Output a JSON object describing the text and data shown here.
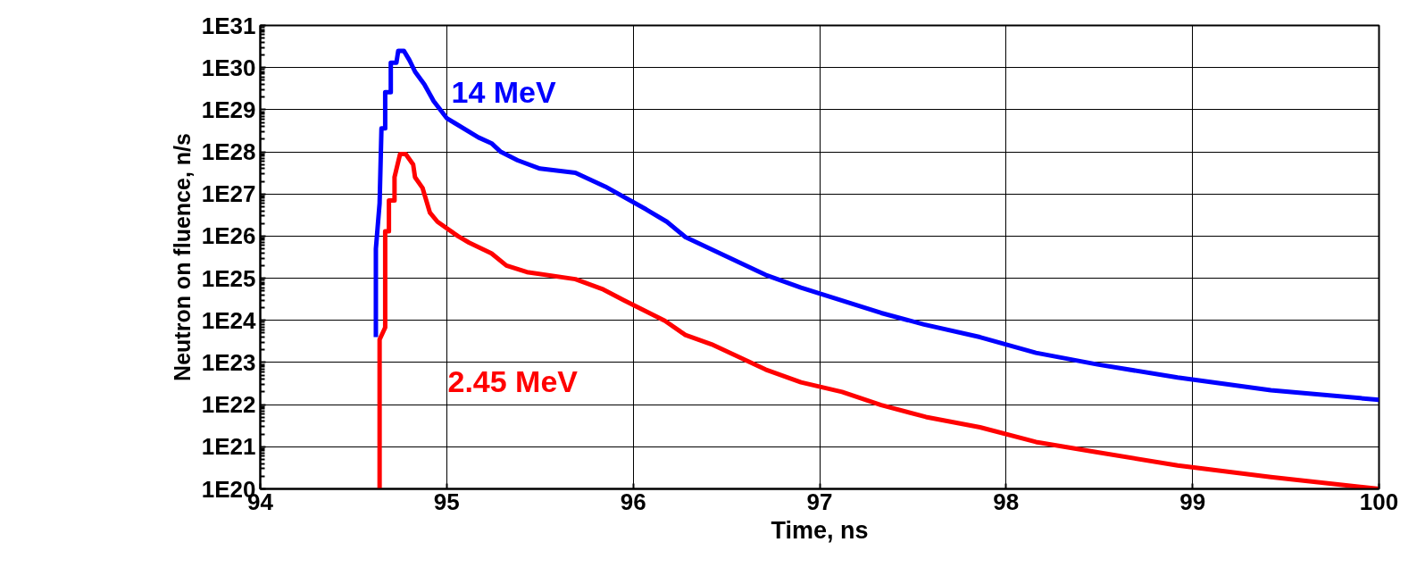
{
  "chart_data": {
    "type": "line",
    "xlabel": "Time, ns",
    "ylabel": "Neutron on fluence, n/s",
    "log": "y",
    "grid": true,
    "marker": "none",
    "line_style": "solid",
    "xlim": [
      94,
      100
    ],
    "xticks": [
      94,
      95,
      96,
      97,
      98,
      99,
      100
    ],
    "ylim": [
      1e+20,
      1e+31
    ],
    "yticks": [
      {
        "value": 1e+20,
        "label": "1E20"
      },
      {
        "value": 1e+21,
        "label": "1E21"
      },
      {
        "value": 1e+22,
        "label": "1E22"
      },
      {
        "value": 1e+23,
        "label": "1E23"
      },
      {
        "value": 1e+24,
        "label": "1E24"
      },
      {
        "value": 1e+25,
        "label": "1E25"
      },
      {
        "value": 1e+26,
        "label": "1E26"
      },
      {
        "value": 1e+27,
        "label": "1E27"
      },
      {
        "value": 1e+28,
        "label": "1E28"
      },
      {
        "value": 1e+29,
        "label": "1E29"
      },
      {
        "value": 1e+30,
        "label": "1E30"
      },
      {
        "value": 1e+31,
        "label": "1E31"
      }
    ],
    "series": [
      {
        "color": "#0000ff",
        "x": [
          94.62,
          94.62,
          94.64,
          94.65,
          94.67,
          94.67,
          94.7,
          94.7,
          94.73,
          94.74,
          94.77,
          94.8,
          94.83,
          94.88,
          94.93,
          95.0,
          95.17,
          95.24,
          95.29,
          95.38,
          95.5,
          95.69,
          95.85,
          96.07,
          96.18,
          96.28,
          96.71,
          96.9,
          97.33,
          97.56,
          97.86,
          98.16,
          98.49,
          98.92,
          99.42,
          100
        ],
        "values": [
          4e+23,
          5e+25,
          6e+26,
          3.6e+28,
          3.6e+28,
          2.6e+29,
          2.6e+29,
          1.3e+30,
          1.3e+30,
          2.5e+30,
          2.5e+30,
          1.5e+30,
          8e+29,
          4e+29,
          1.6e+29,
          6.3e+28,
          2.2e+28,
          1.6e+28,
          1e+28,
          6.3e+27,
          4e+27,
          3.2e+27,
          1.5e+27,
          4.3e+26,
          2.2e+26,
          9.5e+25,
          1.2e+25,
          6e+24,
          1.5e+24,
          8e+23,
          4e+23,
          1.7e+23,
          9e+22,
          4.4e+22,
          2.2e+22,
          1.3e+22
        ]
      },
      {
        "color": "#ff0000",
        "x": [
          94.64,
          94.64,
          94.67,
          94.67,
          94.69,
          94.69,
          94.72,
          94.72,
          94.75,
          94.78,
          94.82,
          94.83,
          94.87,
          94.91,
          94.95,
          95.06,
          95.12,
          95.24,
          95.32,
          95.43,
          95.69,
          95.84,
          95.95,
          96.17,
          96.28,
          96.42,
          96.71,
          96.9,
          97.12,
          97.33,
          97.57,
          97.86,
          98.16,
          98.49,
          98.92,
          99.42,
          100
        ],
        "values": [
          1e+20,
          3.5e+23,
          6.8e+23,
          1.3e+26,
          1.3e+26,
          7e+26,
          7e+26,
          2.5e+27,
          8.9e+27,
          8.9e+27,
          5e+27,
          2.5e+27,
          1.4e+27,
          3.6e+26,
          2.2e+26,
          1e+26,
          7e+25,
          3.9e+25,
          2e+25,
          1.4e+25,
          9.5e+24,
          5.4e+24,
          3e+24,
          9.8e+23,
          4.5e+23,
          2.7e+23,
          6.8e+22,
          3.4e+22,
          2e+22,
          9.8e+21,
          5.1e+21,
          2.9e+21,
          1.3e+21,
          7.4e+20,
          3.6e+20,
          1.9e+20,
          1e+20
        ]
      }
    ],
    "annotations": [
      "14 MeV",
      "2.45 MeV"
    ]
  }
}
